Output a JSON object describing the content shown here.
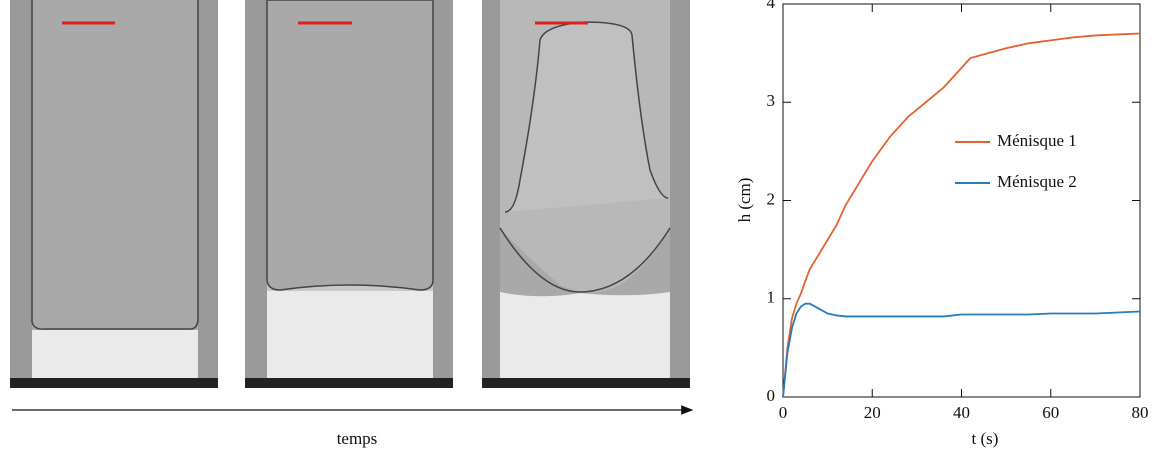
{
  "caption": "temps",
  "chart_data": {
    "type": "line",
    "xlabel": "t (s)",
    "ylabel": "h (cm)",
    "x": [
      0,
      1,
      2,
      3,
      4,
      5,
      6,
      8,
      10,
      12,
      14,
      16,
      18,
      20,
      24,
      28,
      32,
      36,
      40,
      42,
      46,
      50,
      55,
      60,
      65,
      70,
      75,
      80
    ],
    "series": [
      {
        "name": "Ménisque 1",
        "color": "#e2612f",
        "values": [
          0,
          0.5,
          0.8,
          0.95,
          1.05,
          1.18,
          1.3,
          1.45,
          1.6,
          1.75,
          1.95,
          2.1,
          2.25,
          2.4,
          2.65,
          2.85,
          3.0,
          3.15,
          3.35,
          3.45,
          3.5,
          3.55,
          3.6,
          3.63,
          3.66,
          3.68,
          3.69,
          3.7
        ]
      },
      {
        "name": "Ménisque 2",
        "color": "#2a7ab8",
        "values": [
          0,
          0.45,
          0.7,
          0.85,
          0.92,
          0.95,
          0.95,
          0.9,
          0.85,
          0.83,
          0.82,
          0.82,
          0.82,
          0.82,
          0.82,
          0.82,
          0.82,
          0.82,
          0.84,
          0.84,
          0.84,
          0.84,
          0.84,
          0.85,
          0.85,
          0.85,
          0.86,
          0.87
        ]
      }
    ],
    "xlim": [
      0,
      80
    ],
    "xticks": [
      0,
      20,
      40,
      60,
      80
    ],
    "ylim": [
      0,
      4
    ],
    "yticks": [
      0,
      1,
      2,
      3,
      4
    ],
    "grid": false
  }
}
